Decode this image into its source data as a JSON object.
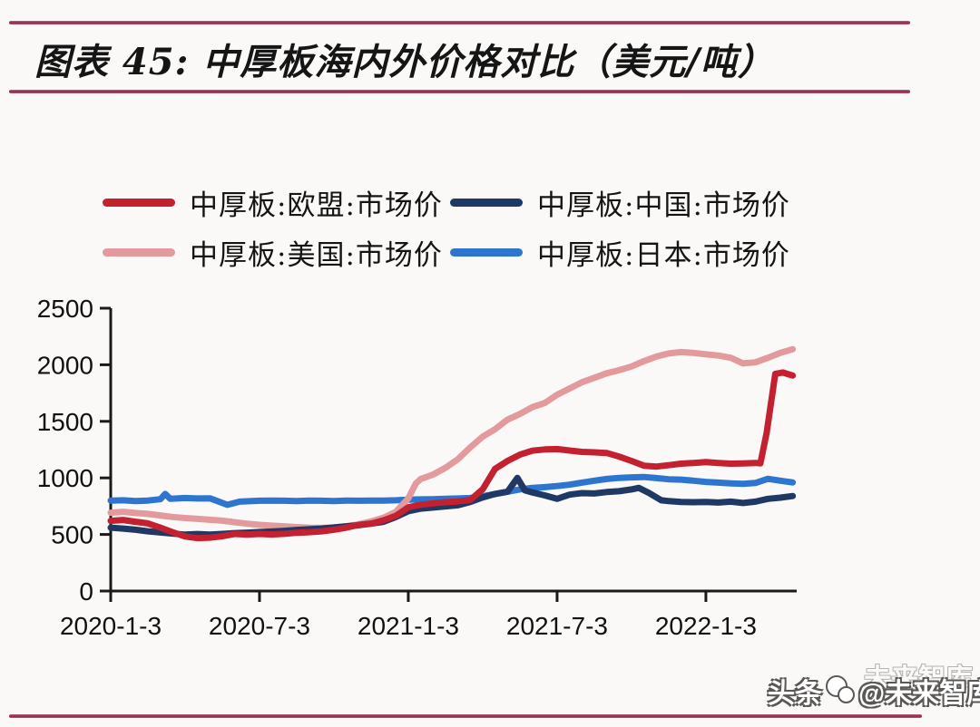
{
  "page": {
    "title": "图表 45:  中厚板海内外价格对比（美元/吨）",
    "rule_color": "#a12f53",
    "watermark": {
      "prefix": "头条",
      "handle": "@未来智库",
      "ghost": "未来智库"
    }
  },
  "legend": {
    "items": [
      {
        "label": "中厚板:欧盟:市场价",
        "color": "#c32030"
      },
      {
        "label": "中厚板:中国:市场价",
        "color": "#1f3864"
      },
      {
        "label": "中厚板:美国:市场价",
        "color": "#e39a9c"
      },
      {
        "label": "中厚板:日本:市场价",
        "color": "#2e75d0"
      }
    ]
  },
  "chart_data": {
    "type": "line",
    "title": "中厚板海内外价格对比（美元/吨）",
    "ylabel": "美元/吨",
    "xlabel": "",
    "grid": false,
    "legend_position": "top",
    "ylim": [
      0,
      2500
    ],
    "y_ticks": [
      0,
      500,
      1000,
      1500,
      2000,
      2500
    ],
    "x_unit": "months_since_2020-1-3",
    "xlim_months": [
      0,
      27.7
    ],
    "x_tick_months": [
      0,
      6,
      12,
      18,
      24
    ],
    "x_tick_labels": [
      "2020-1-3",
      "2020-7-3",
      "2021-1-3",
      "2021-7-3",
      "2022-1-3"
    ],
    "axis_color": "#1a1a1a",
    "draw_order": [
      3,
      2,
      1,
      0
    ],
    "series": [
      {
        "name": "中厚板:欧盟:市场价",
        "color": "#c32030",
        "points": [
          [
            0,
            620
          ],
          [
            0.5,
            628
          ],
          [
            1,
            612
          ],
          [
            1.5,
            598
          ],
          [
            2,
            560
          ],
          [
            2.5,
            520
          ],
          [
            3,
            482
          ],
          [
            3.5,
            468
          ],
          [
            4,
            472
          ],
          [
            4.5,
            485
          ],
          [
            5,
            505
          ],
          [
            5.5,
            498
          ],
          [
            6,
            505
          ],
          [
            6.5,
            500
          ],
          [
            7,
            506
          ],
          [
            7.5,
            515
          ],
          [
            8,
            520
          ],
          [
            8.5,
            528
          ],
          [
            9,
            542
          ],
          [
            9.5,
            560
          ],
          [
            10,
            585
          ],
          [
            10.5,
            595
          ],
          [
            11,
            625
          ],
          [
            11.5,
            665
          ],
          [
            12,
            740
          ],
          [
            12.5,
            762
          ],
          [
            13,
            775
          ],
          [
            13.5,
            785
          ],
          [
            14,
            792
          ],
          [
            14.5,
            805
          ],
          [
            15,
            900
          ],
          [
            15.5,
            1080
          ],
          [
            16,
            1150
          ],
          [
            16.5,
            1205
          ],
          [
            17,
            1240
          ],
          [
            17.5,
            1252
          ],
          [
            18,
            1255
          ],
          [
            18.5,
            1242
          ],
          [
            19,
            1230
          ],
          [
            19.5,
            1226
          ],
          [
            20,
            1220
          ],
          [
            20.5,
            1188
          ],
          [
            21,
            1150
          ],
          [
            21.5,
            1108
          ],
          [
            22,
            1100
          ],
          [
            22.5,
            1112
          ],
          [
            23,
            1126
          ],
          [
            23.5,
            1132
          ],
          [
            24,
            1140
          ],
          [
            24.5,
            1132
          ],
          [
            25,
            1126
          ],
          [
            25.5,
            1128
          ],
          [
            26,
            1132
          ],
          [
            26.2,
            1128
          ],
          [
            26.45,
            1400
          ],
          [
            26.8,
            1920
          ],
          [
            27.1,
            1932
          ],
          [
            27.3,
            1918
          ],
          [
            27.5,
            1905
          ]
        ]
      },
      {
        "name": "中厚板:中国:市场价",
        "color": "#1f3864",
        "points": [
          [
            0,
            560
          ],
          [
            0.5,
            552
          ],
          [
            1,
            542
          ],
          [
            1.5,
            528
          ],
          [
            2,
            518
          ],
          [
            2.5,
            508
          ],
          [
            3,
            498
          ],
          [
            3.5,
            504
          ],
          [
            4,
            498
          ],
          [
            4.5,
            505
          ],
          [
            5,
            512
          ],
          [
            5.5,
            516
          ],
          [
            6,
            522
          ],
          [
            6.5,
            526
          ],
          [
            7,
            532
          ],
          [
            7.5,
            540
          ],
          [
            8,
            546
          ],
          [
            8.5,
            552
          ],
          [
            9,
            562
          ],
          [
            9.5,
            572
          ],
          [
            10,
            582
          ],
          [
            10.5,
            596
          ],
          [
            11,
            612
          ],
          [
            11.5,
            655
          ],
          [
            12,
            705
          ],
          [
            12.5,
            728
          ],
          [
            13,
            738
          ],
          [
            13.5,
            748
          ],
          [
            14,
            758
          ],
          [
            14.5,
            788
          ],
          [
            15,
            828
          ],
          [
            15.5,
            858
          ],
          [
            16,
            878
          ],
          [
            16.4,
            1000
          ],
          [
            16.7,
            890
          ],
          [
            17,
            872
          ],
          [
            17.5,
            845
          ],
          [
            18,
            815
          ],
          [
            18.5,
            852
          ],
          [
            19,
            865
          ],
          [
            19.5,
            862
          ],
          [
            20,
            875
          ],
          [
            20.5,
            882
          ],
          [
            21,
            898
          ],
          [
            21.3,
            912
          ],
          [
            21.7,
            868
          ],
          [
            22.2,
            802
          ],
          [
            22.5,
            795
          ],
          [
            23,
            788
          ],
          [
            23.5,
            785
          ],
          [
            24,
            788
          ],
          [
            24.5,
            782
          ],
          [
            25,
            790
          ],
          [
            25.5,
            778
          ],
          [
            26,
            790
          ],
          [
            26.5,
            815
          ],
          [
            27,
            825
          ],
          [
            27.5,
            840
          ]
        ]
      },
      {
        "name": "中厚板:美国:市场价",
        "color": "#e39a9c",
        "points": [
          [
            0,
            692
          ],
          [
            0.5,
            700
          ],
          [
            1,
            690
          ],
          [
            1.5,
            682
          ],
          [
            2,
            668
          ],
          [
            2.5,
            655
          ],
          [
            3,
            645
          ],
          [
            3.5,
            638
          ],
          [
            4,
            630
          ],
          [
            4.5,
            622
          ],
          [
            5,
            608
          ],
          [
            5.5,
            595
          ],
          [
            6,
            585
          ],
          [
            6.5,
            578
          ],
          [
            7,
            572
          ],
          [
            7.5,
            565
          ],
          [
            8,
            560
          ],
          [
            8.5,
            558
          ],
          [
            9,
            562
          ],
          [
            9.5,
            572
          ],
          [
            10,
            590
          ],
          [
            10.5,
            615
          ],
          [
            11,
            648
          ],
          [
            11.5,
            700
          ],
          [
            12,
            820
          ],
          [
            12.3,
            950
          ],
          [
            12.5,
            990
          ],
          [
            13,
            1030
          ],
          [
            13.5,
            1090
          ],
          [
            14,
            1165
          ],
          [
            14.5,
            1270
          ],
          [
            15,
            1365
          ],
          [
            15.5,
            1430
          ],
          [
            16,
            1515
          ],
          [
            16.5,
            1565
          ],
          [
            17,
            1625
          ],
          [
            17.5,
            1662
          ],
          [
            18,
            1735
          ],
          [
            18.5,
            1790
          ],
          [
            19,
            1845
          ],
          [
            19.5,
            1885
          ],
          [
            20,
            1925
          ],
          [
            20.5,
            1952
          ],
          [
            21,
            1985
          ],
          [
            21.5,
            2032
          ],
          [
            22,
            2072
          ],
          [
            22.5,
            2100
          ],
          [
            23,
            2112
          ],
          [
            23.5,
            2105
          ],
          [
            24,
            2092
          ],
          [
            24.5,
            2082
          ],
          [
            25,
            2062
          ],
          [
            25.5,
            2012
          ],
          [
            26,
            2022
          ],
          [
            26.5,
            2062
          ],
          [
            27,
            2105
          ],
          [
            27.5,
            2138
          ]
        ]
      },
      {
        "name": "中厚板:日本:市场价",
        "color": "#2e75d0",
        "points": [
          [
            0,
            800
          ],
          [
            0.5,
            802
          ],
          [
            1,
            795
          ],
          [
            1.5,
            800
          ],
          [
            2,
            812
          ],
          [
            2.2,
            858
          ],
          [
            2.4,
            815
          ],
          [
            3,
            822
          ],
          [
            3.5,
            818
          ],
          [
            4,
            820
          ],
          [
            4.7,
            762
          ],
          [
            5.2,
            790
          ],
          [
            6,
            798
          ],
          [
            6.5,
            800
          ],
          [
            7,
            798
          ],
          [
            7.5,
            795
          ],
          [
            8,
            800
          ],
          [
            8.5,
            798
          ],
          [
            9,
            795
          ],
          [
            9.5,
            800
          ],
          [
            10,
            798
          ],
          [
            10.5,
            800
          ],
          [
            11,
            800
          ],
          [
            11.5,
            802
          ],
          [
            12,
            808
          ],
          [
            12.5,
            810
          ],
          [
            13,
            812
          ],
          [
            13.5,
            815
          ],
          [
            14,
            818
          ],
          [
            14.5,
            822
          ],
          [
            15,
            838
          ],
          [
            15.5,
            858
          ],
          [
            16,
            878
          ],
          [
            16.5,
            898
          ],
          [
            17,
            912
          ],
          [
            17.5,
            918
          ],
          [
            18,
            928
          ],
          [
            18.5,
            940
          ],
          [
            19,
            958
          ],
          [
            19.5,
            975
          ],
          [
            20,
            990
          ],
          [
            20.5,
            1000
          ],
          [
            21,
            1005
          ],
          [
            21.5,
            1008
          ],
          [
            22,
            998
          ],
          [
            22.5,
            988
          ],
          [
            23,
            985
          ],
          [
            23.5,
            975
          ],
          [
            24,
            965
          ],
          [
            24.5,
            958
          ],
          [
            25,
            952
          ],
          [
            25.5,
            948
          ],
          [
            26,
            955
          ],
          [
            26.5,
            992
          ],
          [
            27,
            975
          ],
          [
            27.5,
            960
          ]
        ]
      }
    ]
  }
}
